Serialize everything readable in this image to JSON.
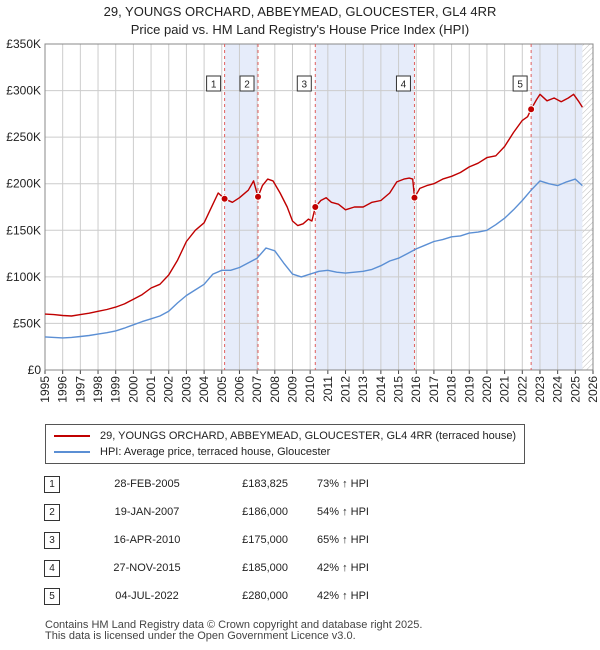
{
  "header": {
    "title_line1": "29, YOUNGS ORCHARD, ABBEYMEAD, GLOUCESTER, GL4 4RR",
    "title_line2": "Price paid vs. HM Land Registry's House Price Index (HPI)"
  },
  "colors": {
    "property": "#c00000",
    "hpi": "#5b8fd4",
    "shade": "#e6ecfa",
    "grid": "#cccccc",
    "marker_line": "#e06060"
  },
  "chart_data": {
    "type": "line",
    "title": "Price paid vs. HM Land Registry's House Price Index (HPI)",
    "ylim": [
      0,
      350000
    ],
    "xlim": [
      1995,
      2026
    ],
    "y_ticks": [
      {
        "value": 0,
        "label": "£0"
      },
      {
        "value": 50000,
        "label": "£50K"
      },
      {
        "value": 100000,
        "label": "£100K"
      },
      {
        "value": 150000,
        "label": "£150K"
      },
      {
        "value": 200000,
        "label": "£200K"
      },
      {
        "value": 250000,
        "label": "£250K"
      },
      {
        "value": 300000,
        "label": "£300K"
      },
      {
        "value": 350000,
        "label": "£350K"
      }
    ],
    "x_ticks": [
      "1995",
      "1996",
      "1997",
      "1998",
      "1999",
      "2000",
      "2001",
      "2002",
      "2003",
      "2004",
      "2005",
      "2006",
      "2007",
      "2008",
      "2009",
      "2010",
      "2011",
      "2012",
      "2013",
      "2014",
      "2015",
      "2016",
      "2017",
      "2018",
      "2019",
      "2020",
      "2021",
      "2022",
      "2023",
      "2024",
      "2025",
      "2026"
    ],
    "shaded_ranges": [
      [
        2005.16,
        2007.05
      ],
      [
        2010.29,
        2015.9
      ],
      [
        2022.5,
        2025.4
      ]
    ],
    "future_hatch_from": 2025.4,
    "series": [
      {
        "name": "29, YOUNGS ORCHARD, ABBEYMEAD, GLOUCESTER, GL4 4RR (terraced house)",
        "color": "#c00000",
        "points": [
          [
            1995,
            60000
          ],
          [
            1995.5,
            59500
          ],
          [
            1996,
            58500
          ],
          [
            1996.5,
            58000
          ],
          [
            1997,
            59500
          ],
          [
            1997.5,
            61000
          ],
          [
            1998,
            63000
          ],
          [
            1998.5,
            65000
          ],
          [
            1999,
            67500
          ],
          [
            1999.5,
            71000
          ],
          [
            2000,
            76000
          ],
          [
            2000.5,
            81000
          ],
          [
            2001,
            88000
          ],
          [
            2001.5,
            92000
          ],
          [
            2002,
            102000
          ],
          [
            2002.5,
            118000
          ],
          [
            2003,
            138000
          ],
          [
            2003.5,
            150000
          ],
          [
            2004,
            158000
          ],
          [
            2004.5,
            178000
          ],
          [
            2004.8,
            190000
          ],
          [
            2005.16,
            183825
          ],
          [
            2005.6,
            180000
          ],
          [
            2006,
            185000
          ],
          [
            2006.5,
            193000
          ],
          [
            2006.8,
            203000
          ],
          [
            2007.05,
            186000
          ],
          [
            2007.3,
            198000
          ],
          [
            2007.6,
            205000
          ],
          [
            2007.9,
            203000
          ],
          [
            2008.3,
            190000
          ],
          [
            2008.7,
            175000
          ],
          [
            2009,
            160000
          ],
          [
            2009.3,
            155000
          ],
          [
            2009.6,
            157000
          ],
          [
            2009.9,
            162000
          ],
          [
            2010.1,
            160000
          ],
          [
            2010.29,
            175000
          ],
          [
            2010.6,
            182000
          ],
          [
            2010.9,
            185000
          ],
          [
            2011.2,
            180000
          ],
          [
            2011.6,
            178000
          ],
          [
            2012,
            172000
          ],
          [
            2012.5,
            175000
          ],
          [
            2013,
            175000
          ],
          [
            2013.5,
            180000
          ],
          [
            2014,
            182000
          ],
          [
            2014.5,
            190000
          ],
          [
            2014.9,
            202000
          ],
          [
            2015.3,
            205000
          ],
          [
            2015.6,
            206000
          ],
          [
            2015.8,
            205000
          ],
          [
            2015.9,
            185000
          ],
          [
            2016.2,
            195000
          ],
          [
            2016.6,
            198000
          ],
          [
            2017,
            200000
          ],
          [
            2017.5,
            205000
          ],
          [
            2018,
            208000
          ],
          [
            2018.5,
            212000
          ],
          [
            2019,
            218000
          ],
          [
            2019.5,
            222000
          ],
          [
            2020,
            228000
          ],
          [
            2020.5,
            230000
          ],
          [
            2021,
            240000
          ],
          [
            2021.5,
            255000
          ],
          [
            2022,
            268000
          ],
          [
            2022.3,
            272000
          ],
          [
            2022.5,
            280000
          ],
          [
            2022.8,
            290000
          ],
          [
            2023,
            296000
          ],
          [
            2023.4,
            289000
          ],
          [
            2023.8,
            292000
          ],
          [
            2024.2,
            288000
          ],
          [
            2024.6,
            292000
          ],
          [
            2024.9,
            296000
          ],
          [
            2025.2,
            288000
          ],
          [
            2025.4,
            282000
          ]
        ]
      },
      {
        "name": "HPI: Average price, terraced house, Gloucester",
        "color": "#5b8fd4",
        "points": [
          [
            1995,
            35500
          ],
          [
            1995.5,
            35000
          ],
          [
            1996,
            34500
          ],
          [
            1996.5,
            35000
          ],
          [
            1997,
            36000
          ],
          [
            1997.5,
            37000
          ],
          [
            1998,
            38500
          ],
          [
            1998.5,
            40000
          ],
          [
            1999,
            42000
          ],
          [
            1999.5,
            45000
          ],
          [
            2000,
            48500
          ],
          [
            2000.5,
            52000
          ],
          [
            2001,
            55000
          ],
          [
            2001.5,
            58000
          ],
          [
            2002,
            63000
          ],
          [
            2002.5,
            72000
          ],
          [
            2003,
            80000
          ],
          [
            2003.5,
            86000
          ],
          [
            2004,
            92000
          ],
          [
            2004.5,
            103000
          ],
          [
            2005,
            107000
          ],
          [
            2005.5,
            107000
          ],
          [
            2006,
            110000
          ],
          [
            2006.5,
            115000
          ],
          [
            2007,
            120000
          ],
          [
            2007.5,
            131000
          ],
          [
            2008,
            128000
          ],
          [
            2008.5,
            115000
          ],
          [
            2009,
            103000
          ],
          [
            2009.5,
            100000
          ],
          [
            2010,
            103000
          ],
          [
            2010.5,
            106000
          ],
          [
            2011,
            107000
          ],
          [
            2011.5,
            105000
          ],
          [
            2012,
            104000
          ],
          [
            2012.5,
            105000
          ],
          [
            2013,
            106000
          ],
          [
            2013.5,
            108000
          ],
          [
            2014,
            112000
          ],
          [
            2014.5,
            117000
          ],
          [
            2015,
            120000
          ],
          [
            2015.5,
            125000
          ],
          [
            2016,
            130000
          ],
          [
            2016.5,
            134000
          ],
          [
            2017,
            138000
          ],
          [
            2017.5,
            140000
          ],
          [
            2018,
            143000
          ],
          [
            2018.5,
            144000
          ],
          [
            2019,
            147000
          ],
          [
            2019.5,
            148000
          ],
          [
            2020,
            150000
          ],
          [
            2020.5,
            156000
          ],
          [
            2021,
            163000
          ],
          [
            2021.5,
            172000
          ],
          [
            2022,
            182000
          ],
          [
            2022.5,
            193000
          ],
          [
            2023,
            203000
          ],
          [
            2023.5,
            200000
          ],
          [
            2024,
            198000
          ],
          [
            2024.5,
            202000
          ],
          [
            2025,
            205000
          ],
          [
            2025.4,
            198000
          ]
        ]
      }
    ],
    "sales": [
      {
        "n": "1",
        "x": 2005.16,
        "price": 183825
      },
      {
        "n": "2",
        "x": 2007.05,
        "price": 186000
      },
      {
        "n": "3",
        "x": 2010.29,
        "price": 175000
      },
      {
        "n": "4",
        "x": 2015.9,
        "price": 185000
      },
      {
        "n": "5",
        "x": 2022.5,
        "price": 280000
      }
    ]
  },
  "legend": {
    "property_label": "29, YOUNGS ORCHARD, ABBEYMEAD, GLOUCESTER, GL4 4RR (terraced house)",
    "hpi_label": "HPI: Average price, terraced house, Gloucester"
  },
  "sales_table": [
    {
      "n": "1",
      "date": "28-FEB-2005",
      "price": "£183,825",
      "hpi": "73% ↑ HPI"
    },
    {
      "n": "2",
      "date": "19-JAN-2007",
      "price": "£186,000",
      "hpi": "54% ↑ HPI"
    },
    {
      "n": "3",
      "date": "16-APR-2010",
      "price": "£175,000",
      "hpi": "65% ↑ HPI"
    },
    {
      "n": "4",
      "date": "27-NOV-2015",
      "price": "£185,000",
      "hpi": "42% ↑ HPI"
    },
    {
      "n": "5",
      "date": "04-JUL-2022",
      "price": "£280,000",
      "hpi": "42% ↑ HPI"
    }
  ],
  "footer": {
    "line1": "Contains HM Land Registry data © Crown copyright and database right 2025.",
    "line2": "This data is licensed under the Open Government Licence v3.0."
  }
}
